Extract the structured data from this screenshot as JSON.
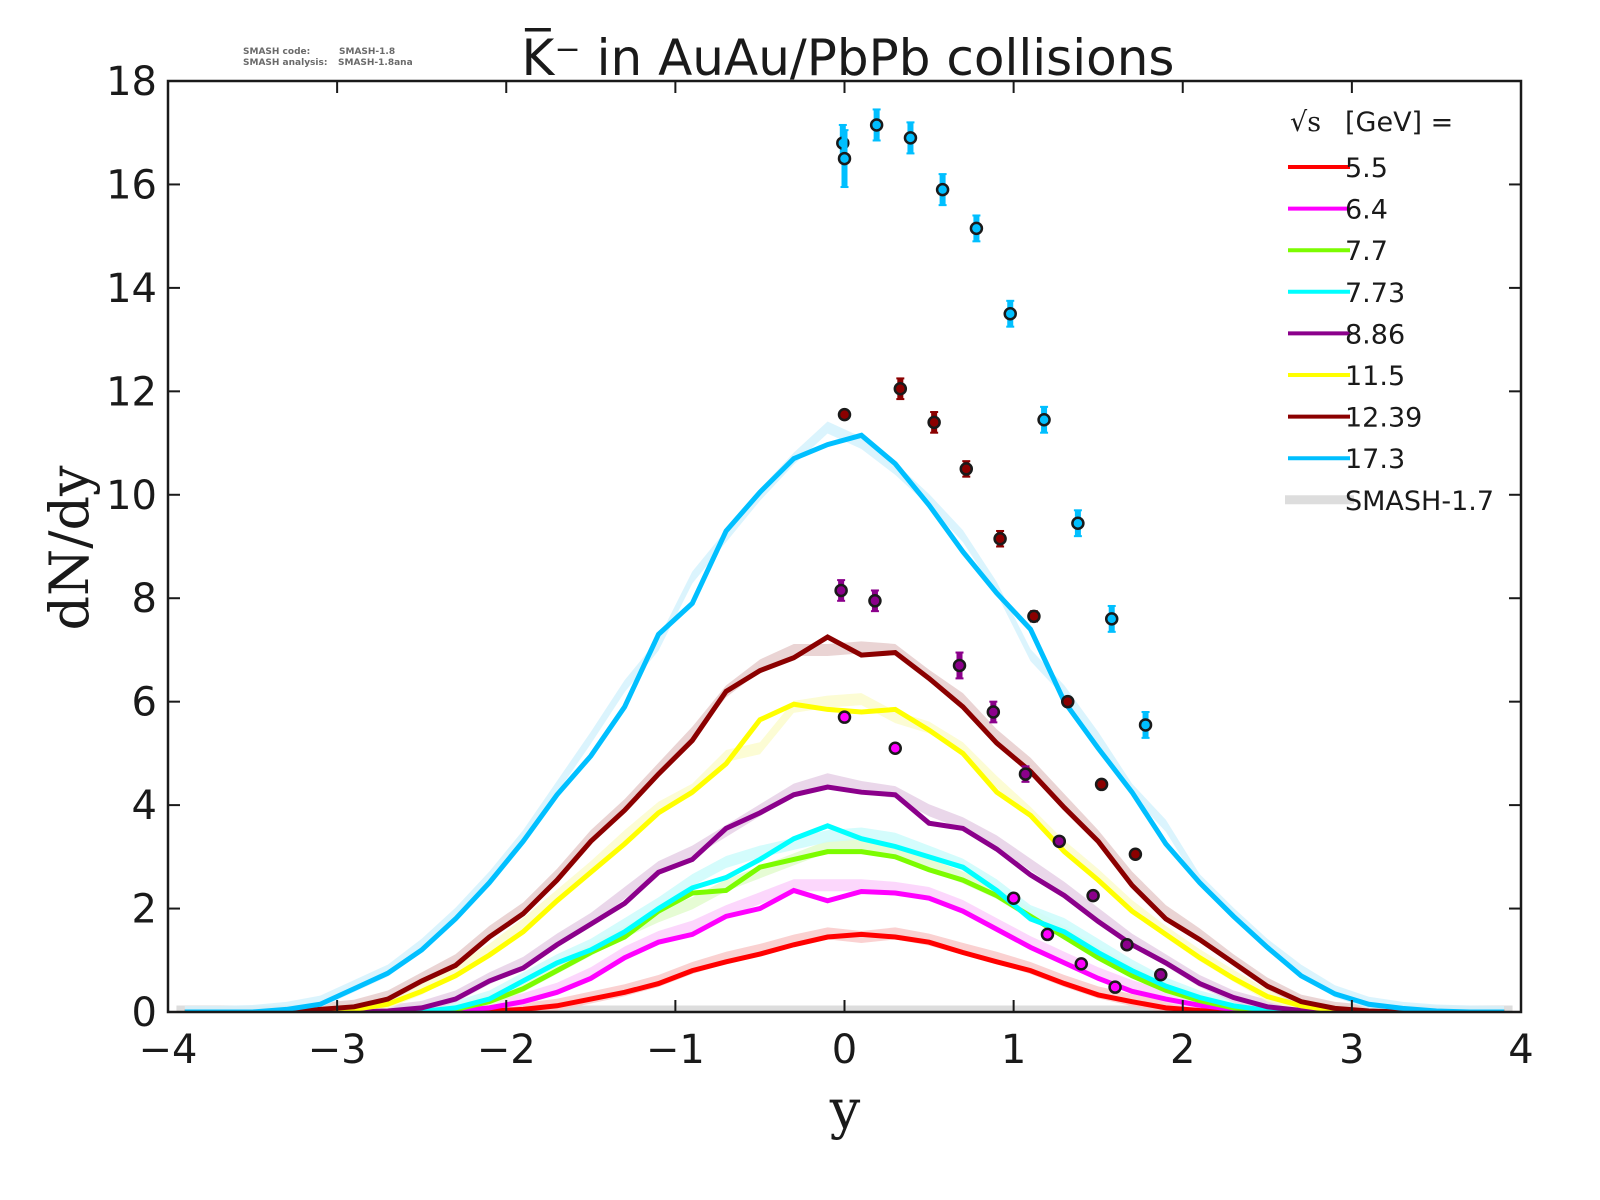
{
  "smash_info": {
    "code_label": "SMASH code:",
    "code_value": "SMASH-1.8",
    "analysis_label": "SMASH analysis:",
    "analysis_value": "SMASH-1.8ana"
  },
  "chart_data": {
    "type": "line",
    "title": "K̅⁻ in AuAu/PbPb collisions",
    "xlabel": "y",
    "ylabel": "dN/dy",
    "xlim": [
      -4,
      4
    ],
    "ylim": [
      0,
      18
    ],
    "xticks": [
      "−4",
      "−3",
      "−2",
      "−1",
      "0",
      "1",
      "2",
      "3",
      "4"
    ],
    "xtick_values": [
      -4,
      -3,
      -2,
      -1,
      0,
      1,
      2,
      3,
      4
    ],
    "yticks": [
      "0",
      "2",
      "4",
      "6",
      "8",
      "10",
      "12",
      "14",
      "16",
      "18"
    ],
    "ytick_values": [
      0,
      2,
      4,
      6,
      8,
      10,
      12,
      14,
      16,
      18
    ],
    "grid": false,
    "legend": {
      "placement": "top-right",
      "title_sqrt": "√s",
      "title_rest": "[GeV] =",
      "reference_label": "SMASH-1.7",
      "reference_color": "#dddddd"
    },
    "x": [
      -3.9,
      -3.7,
      -3.5,
      -3.3,
      -3.1,
      -2.9,
      -2.7,
      -2.5,
      -2.3,
      -2.1,
      -1.9,
      -1.7,
      -1.5,
      -1.3,
      -1.1,
      -0.9,
      -0.7,
      -0.5,
      -0.3,
      -0.1,
      0.1,
      0.3,
      0.5,
      0.7,
      0.9,
      1.1,
      1.3,
      1.5,
      1.7,
      1.9,
      2.1,
      2.3,
      2.5,
      2.7,
      2.9,
      3.1,
      3.3,
      3.5,
      3.7,
      3.9
    ],
    "series": [
      {
        "name": "5.5",
        "color": "#ff0000",
        "band_color": "#f9c9c9",
        "values": [
          0,
          0,
          0,
          0,
          0,
          0,
          0,
          0,
          0.01,
          0.02,
          0.05,
          0.12,
          0.25,
          0.38,
          0.55,
          0.8,
          0.97,
          1.12,
          1.3,
          1.45,
          1.5,
          1.45,
          1.35,
          1.15,
          0.97,
          0.8,
          0.55,
          0.33,
          0.2,
          0.08,
          0.03,
          0.01,
          0,
          0,
          0,
          0,
          0,
          0,
          0,
          0
        ],
        "ref": [
          0,
          0,
          0,
          0,
          0,
          0,
          0,
          0,
          0.01,
          0.02,
          0.06,
          0.14,
          0.28,
          0.42,
          0.6,
          0.85,
          1.05,
          1.2,
          1.38,
          1.52,
          1.45,
          1.52,
          1.4,
          1.22,
          1.05,
          0.85,
          0.6,
          0.38,
          0.23,
          0.1,
          0.04,
          0.01,
          0,
          0,
          0,
          0,
          0,
          0,
          0,
          0
        ],
        "points": []
      },
      {
        "name": "6.4",
        "color": "#ff00ff",
        "band_color": "#fbd0fb",
        "values": [
          0,
          0,
          0,
          0,
          0,
          0,
          0,
          0,
          0.02,
          0.08,
          0.2,
          0.38,
          0.65,
          1.05,
          1.35,
          1.5,
          1.85,
          2.0,
          2.35,
          2.15,
          2.33,
          2.3,
          2.2,
          1.95,
          1.6,
          1.25,
          0.95,
          0.65,
          0.4,
          0.25,
          0.13,
          0.05,
          0.01,
          0,
          0,
          0,
          0,
          0,
          0,
          0
        ],
        "ref": [
          0,
          0,
          0,
          0,
          0,
          0,
          0,
          0,
          0.03,
          0.1,
          0.25,
          0.45,
          0.75,
          1.15,
          1.45,
          1.65,
          1.95,
          2.2,
          2.45,
          2.45,
          2.45,
          2.4,
          2.3,
          2.05,
          1.7,
          1.35,
          1.05,
          0.75,
          0.5,
          0.3,
          0.15,
          0.06,
          0.02,
          0,
          0,
          0,
          0,
          0,
          0,
          0
        ],
        "points": [
          {
            "x": 0.0,
            "y": 5.7,
            "err": 0.0
          },
          {
            "x": 0.3,
            "y": 5.1,
            "err": 0.0
          },
          {
            "x": 1.0,
            "y": 2.2,
            "err": 0.0
          },
          {
            "x": 1.2,
            "y": 1.5,
            "err": 0.0
          },
          {
            "x": 1.4,
            "y": 0.93,
            "err": 0.0
          },
          {
            "x": 1.6,
            "y": 0.48,
            "err": 0.0
          }
        ]
      },
      {
        "name": "7.7",
        "color": "#7cfc00",
        "band_color": "#e2fbcc",
        "values": [
          0,
          0,
          0,
          0,
          0,
          0,
          0,
          0,
          0.05,
          0.2,
          0.45,
          0.8,
          1.15,
          1.45,
          1.95,
          2.3,
          2.35,
          2.8,
          2.95,
          3.1,
          3.1,
          3.0,
          2.75,
          2.55,
          2.25,
          1.85,
          1.45,
          1.05,
          0.7,
          0.42,
          0.22,
          0.08,
          0.02,
          0,
          0,
          0,
          0,
          0,
          0,
          0
        ],
        "ref": [
          0,
          0,
          0,
          0,
          0,
          0,
          0,
          0,
          0.06,
          0.22,
          0.5,
          0.85,
          1.2,
          1.55,
          1.85,
          2.1,
          2.45,
          2.7,
          2.95,
          3.2,
          3.25,
          3.1,
          2.85,
          2.6,
          2.3,
          1.9,
          1.55,
          1.15,
          0.78,
          0.48,
          0.25,
          0.1,
          0.03,
          0,
          0,
          0,
          0,
          0,
          0,
          0
        ],
        "points": []
      },
      {
        "name": "7.73",
        "color": "#00ffff",
        "band_color": "#ccfbfb",
        "values": [
          0,
          0,
          0,
          0,
          0,
          0,
          0,
          0.01,
          0.08,
          0.25,
          0.6,
          0.95,
          1.2,
          1.55,
          2.0,
          2.4,
          2.6,
          2.95,
          3.35,
          3.6,
          3.35,
          3.2,
          3.0,
          2.8,
          2.35,
          1.8,
          1.55,
          1.15,
          0.8,
          0.5,
          0.28,
          0.12,
          0.03,
          0,
          0,
          0,
          0,
          0,
          0,
          0
        ],
        "ref": [
          0,
          0,
          0,
          0,
          0,
          0,
          0,
          0.01,
          0.1,
          0.3,
          0.65,
          1.0,
          1.3,
          1.7,
          2.1,
          2.55,
          2.9,
          3.1,
          3.25,
          3.4,
          3.45,
          3.35,
          3.1,
          2.85,
          2.45,
          1.95,
          1.7,
          1.3,
          0.9,
          0.55,
          0.3,
          0.13,
          0.04,
          0,
          0,
          0,
          0,
          0,
          0,
          0
        ],
        "points": []
      },
      {
        "name": "8.86",
        "color": "#8b008b",
        "band_color": "#e6d0e6",
        "values": [
          0,
          0,
          0,
          0,
          0,
          0,
          0.02,
          0.08,
          0.25,
          0.6,
          0.85,
          1.3,
          1.7,
          2.1,
          2.7,
          2.95,
          3.55,
          3.85,
          4.2,
          4.35,
          4.25,
          4.2,
          3.65,
          3.55,
          3.15,
          2.65,
          2.25,
          1.75,
          1.3,
          0.95,
          0.55,
          0.28,
          0.1,
          0.03,
          0,
          0,
          0,
          0,
          0,
          0
        ],
        "ref": [
          0,
          0,
          0,
          0,
          0,
          0,
          0.02,
          0.1,
          0.3,
          0.65,
          0.95,
          1.4,
          1.8,
          2.3,
          2.8,
          3.1,
          3.5,
          3.9,
          4.3,
          4.5,
          4.35,
          4.25,
          3.9,
          3.65,
          3.3,
          2.85,
          2.4,
          1.9,
          1.4,
          1.0,
          0.6,
          0.3,
          0.12,
          0.03,
          0,
          0,
          0,
          0,
          0,
          0
        ],
        "points": [
          {
            "x": -0.02,
            "y": 8.15,
            "err": 0.2
          },
          {
            "x": 0.18,
            "y": 7.95,
            "err": 0.2
          },
          {
            "x": 0.68,
            "y": 6.7,
            "err": 0.25
          },
          {
            "x": 0.88,
            "y": 5.8,
            "err": 0.2
          },
          {
            "x": 1.07,
            "y": 4.6,
            "err": 0.15
          },
          {
            "x": 1.27,
            "y": 3.3,
            "err": 0.0
          },
          {
            "x": 1.47,
            "y": 2.25,
            "err": 0.0
          },
          {
            "x": 1.67,
            "y": 1.3,
            "err": 0.0
          },
          {
            "x": 1.87,
            "y": 0.72,
            "err": 0.0
          }
        ]
      },
      {
        "name": "11.5",
        "color": "#ffff00",
        "band_color": "#fbfbcc",
        "values": [
          0,
          0,
          0,
          0,
          0.01,
          0.05,
          0.15,
          0.4,
          0.7,
          1.1,
          1.55,
          2.15,
          2.7,
          3.25,
          3.85,
          4.25,
          4.8,
          5.65,
          5.95,
          5.85,
          5.8,
          5.85,
          5.45,
          5.0,
          4.25,
          3.8,
          3.1,
          2.55,
          1.95,
          1.5,
          1.05,
          0.65,
          0.3,
          0.12,
          0.03,
          0.01,
          0,
          0,
          0,
          0
        ],
        "ref": [
          0,
          0,
          0,
          0,
          0.01,
          0.06,
          0.18,
          0.45,
          0.8,
          1.2,
          1.7,
          2.25,
          2.8,
          3.4,
          3.95,
          4.3,
          4.95,
          5.1,
          5.9,
          6.0,
          6.05,
          5.7,
          5.5,
          5.1,
          4.45,
          3.85,
          3.2,
          2.65,
          2.05,
          1.55,
          1.1,
          0.7,
          0.32,
          0.13,
          0.03,
          0.01,
          0,
          0,
          0,
          0
        ],
        "points": []
      },
      {
        "name": "12.39",
        "color": "#8b0000",
        "band_color": "#e6cccc",
        "values": [
          0,
          0,
          0,
          0,
          0.05,
          0.1,
          0.25,
          0.6,
          0.9,
          1.45,
          1.9,
          2.55,
          3.3,
          3.9,
          4.6,
          5.25,
          6.2,
          6.6,
          6.85,
          7.25,
          6.9,
          6.95,
          6.45,
          5.9,
          5.2,
          4.65,
          3.95,
          3.3,
          2.45,
          1.8,
          1.4,
          0.95,
          0.5,
          0.2,
          0.07,
          0.02,
          0,
          0,
          0,
          0
        ],
        "ref": [
          0,
          0,
          0,
          0,
          0.06,
          0.12,
          0.3,
          0.65,
          1.0,
          1.55,
          2.0,
          2.65,
          3.4,
          4.0,
          4.7,
          5.4,
          6.2,
          6.7,
          7.0,
          7.0,
          7.05,
          7.0,
          6.5,
          6.05,
          5.35,
          4.8,
          4.1,
          3.4,
          2.6,
          1.95,
          1.5,
          1.0,
          0.55,
          0.22,
          0.08,
          0.02,
          0,
          0,
          0,
          0
        ],
        "points": [
          {
            "x": 0.0,
            "y": 11.55,
            "err": 0.0
          },
          {
            "x": 0.33,
            "y": 12.05,
            "err": 0.2
          },
          {
            "x": 0.53,
            "y": 11.4,
            "err": 0.2
          },
          {
            "x": 0.72,
            "y": 10.5,
            "err": 0.15
          },
          {
            "x": 0.92,
            "y": 9.15,
            "err": 0.15
          },
          {
            "x": 1.12,
            "y": 7.65,
            "err": 0.1
          },
          {
            "x": 1.32,
            "y": 6.0,
            "err": 0.0
          },
          {
            "x": 1.52,
            "y": 4.4,
            "err": 0.0
          },
          {
            "x": 1.72,
            "y": 3.05,
            "err": 0.0
          }
        ]
      },
      {
        "name": "17.3",
        "color": "#00bfff",
        "band_color": "#d5f2fd",
        "values": [
          0,
          0,
          0,
          0.05,
          0.15,
          0.45,
          0.75,
          1.2,
          1.8,
          2.5,
          3.3,
          4.2,
          4.95,
          5.9,
          7.3,
          7.9,
          9.3,
          10.05,
          10.7,
          10.97,
          11.15,
          10.6,
          9.8,
          8.9,
          8.1,
          7.4,
          6.0,
          5.1,
          4.25,
          3.25,
          2.5,
          1.85,
          1.25,
          0.7,
          0.35,
          0.15,
          0.07,
          0.02,
          0,
          0
        ],
        "ref": [
          0,
          0,
          0.02,
          0.08,
          0.2,
          0.5,
          0.8,
          1.3,
          1.9,
          2.6,
          3.4,
          4.35,
          5.3,
          6.3,
          7.1,
          8.4,
          9.2,
          10.0,
          10.7,
          11.3,
          11.0,
          10.5,
          9.9,
          9.2,
          8.2,
          6.9,
          6.2,
          5.3,
          4.3,
          3.6,
          2.55,
          1.9,
          1.3,
          0.8,
          0.4,
          0.18,
          0.08,
          0.03,
          0.01,
          0
        ],
        "points": [
          {
            "x": -0.01,
            "y": 16.8,
            "err": 0.35
          },
          {
            "x": 0.0,
            "y": 16.5,
            "err": 0.55
          },
          {
            "x": 0.19,
            "y": 17.15,
            "err": 0.3
          },
          {
            "x": 0.39,
            "y": 16.9,
            "err": 0.3
          },
          {
            "x": 0.58,
            "y": 15.9,
            "err": 0.3
          },
          {
            "x": 0.78,
            "y": 15.15,
            "err": 0.25
          },
          {
            "x": 0.98,
            "y": 13.5,
            "err": 0.25
          },
          {
            "x": 1.18,
            "y": 11.45,
            "err": 0.25
          },
          {
            "x": 1.38,
            "y": 9.45,
            "err": 0.25
          },
          {
            "x": 1.58,
            "y": 7.6,
            "err": 0.25
          },
          {
            "x": 1.78,
            "y": 5.55,
            "err": 0.25
          }
        ]
      }
    ]
  }
}
